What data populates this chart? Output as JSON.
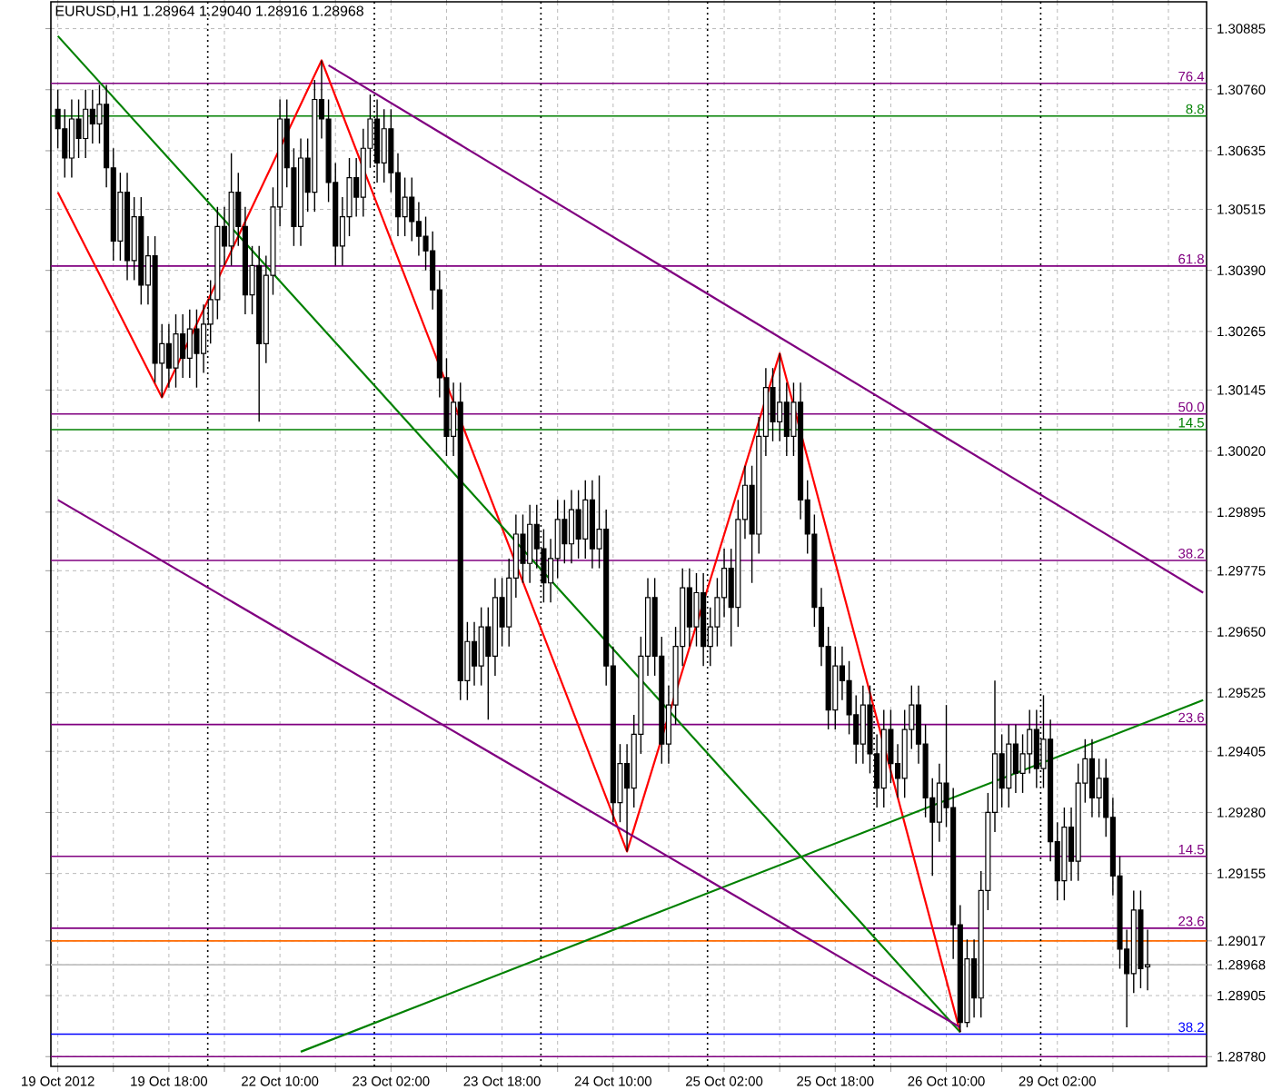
{
  "chart_data": {
    "type": "candlestick",
    "title": "EURUSD,H1  1.28964 1.29040 1.28916 1.28968",
    "color": "#000000",
    "grid": true,
    "categories": [
      "19 Oct 2012",
      null,
      null,
      null,
      null,
      null,
      null,
      null,
      null,
      null,
      null,
      null,
      null,
      null,
      null,
      null,
      "19 Oct 18:00",
      null,
      null,
      null,
      null,
      null,
      null,
      null,
      null,
      null,
      null,
      null,
      null,
      null,
      null,
      null,
      "22 Oct 10:00",
      null,
      null,
      null,
      null,
      null,
      null,
      null,
      null,
      null,
      null,
      null,
      null,
      null,
      null,
      null,
      "23 Oct 02:00",
      null,
      null,
      null,
      null,
      null,
      null,
      null,
      null,
      null,
      null,
      null,
      null,
      null,
      null,
      null,
      "23 Oct 18:00",
      null,
      null,
      null,
      null,
      null,
      null,
      null,
      null,
      null,
      null,
      null,
      null,
      null,
      null,
      null,
      "24 Oct 10:00",
      null,
      null,
      null,
      null,
      null,
      null,
      null,
      null,
      null,
      null,
      null,
      null,
      null,
      null,
      null,
      "25 Oct 02:00",
      null,
      null,
      null,
      null,
      null,
      null,
      null,
      null,
      null,
      null,
      null,
      null,
      null,
      null,
      null,
      "25 Oct 18:00",
      null,
      null,
      null,
      null,
      null,
      null,
      null,
      null,
      null,
      null,
      null,
      null,
      null,
      null,
      null,
      "26 Oct 10:00",
      null,
      null,
      null,
      null,
      null,
      null,
      null,
      null,
      null,
      null,
      null,
      null,
      null,
      null,
      null,
      "29 Oct 02:00",
      null,
      null,
      null,
      null,
      null,
      null,
      null,
      null,
      null,
      null,
      null,
      null,
      null,
      null,
      null,
      null,
      null,
      null,
      null,
      null,
      null
    ],
    "ohlc": [
      [
        1.3072,
        1.3076,
        1.3064,
        1.3068
      ],
      [
        1.3068,
        1.3072,
        1.3058,
        1.3062
      ],
      [
        1.3062,
        1.3074,
        1.3058,
        1.307
      ],
      [
        1.307,
        1.3074,
        1.3062,
        1.3066
      ],
      [
        1.3066,
        1.3076,
        1.3062,
        1.3072
      ],
      [
        1.3072,
        1.3076,
        1.3065,
        1.3069
      ],
      [
        1.3069,
        1.3077,
        1.3065,
        1.3073
      ],
      [
        1.3073,
        1.3077,
        1.3056,
        1.306
      ],
      [
        1.306,
        1.3064,
        1.3041,
        1.3045
      ],
      [
        1.3045,
        1.3059,
        1.3041,
        1.3055
      ],
      [
        1.3055,
        1.3059,
        1.3037,
        1.3041
      ],
      [
        1.3041,
        1.3054,
        1.3037,
        1.305
      ],
      [
        1.305,
        1.3054,
        1.3032,
        1.3036
      ],
      [
        1.3036,
        1.3046,
        1.3032,
        1.3042
      ],
      [
        1.3042,
        1.3046,
        1.3016,
        1.302
      ],
      [
        1.302,
        1.3028,
        1.3013,
        1.3024
      ],
      [
        1.3024,
        1.3028,
        1.3015,
        1.3019
      ],
      [
        1.3019,
        1.303,
        1.3015,
        1.3026
      ],
      [
        1.3026,
        1.303,
        1.3017,
        1.3021
      ],
      [
        1.3021,
        1.3031,
        1.3017,
        1.3027
      ],
      [
        1.3027,
        1.3031,
        1.3015,
        1.3022
      ],
      [
        1.3022,
        1.3032,
        1.3018,
        1.3028
      ],
      [
        1.3028,
        1.3037,
        1.3024,
        1.3033
      ],
      [
        1.3033,
        1.3052,
        1.3029,
        1.3048
      ],
      [
        1.3048,
        1.3052,
        1.304,
        1.3044
      ],
      [
        1.3044,
        1.3063,
        1.304,
        1.3055
      ],
      [
        1.3055,
        1.3059,
        1.3044,
        1.3048
      ],
      [
        1.3048,
        1.3052,
        1.303,
        1.3034
      ],
      [
        1.3034,
        1.3044,
        1.303,
        1.304
      ],
      [
        1.304,
        1.3044,
        1.3008,
        1.3024
      ],
      [
        1.3024,
        1.3042,
        1.302,
        1.3038
      ],
      [
        1.3038,
        1.3056,
        1.3034,
        1.3052
      ],
      [
        1.3052,
        1.3074,
        1.3048,
        1.307
      ],
      [
        1.307,
        1.3074,
        1.3056,
        1.306
      ],
      [
        1.306,
        1.3064,
        1.3044,
        1.3048
      ],
      [
        1.3048,
        1.3066,
        1.3044,
        1.3062
      ],
      [
        1.3062,
        1.3066,
        1.3051,
        1.3055
      ],
      [
        1.3055,
        1.3078,
        1.3051,
        1.3074
      ],
      [
        1.3074,
        1.3082,
        1.3066,
        1.307
      ],
      [
        1.307,
        1.3074,
        1.3053,
        1.3057
      ],
      [
        1.3057,
        1.3061,
        1.304,
        1.3044
      ],
      [
        1.3044,
        1.3054,
        1.304,
        1.305
      ],
      [
        1.305,
        1.3062,
        1.3046,
        1.3058
      ],
      [
        1.3058,
        1.3062,
        1.305,
        1.3054
      ],
      [
        1.3054,
        1.3068,
        1.305,
        1.3064
      ],
      [
        1.3064,
        1.3075,
        1.306,
        1.307
      ],
      [
        1.307,
        1.3074,
        1.3057,
        1.3061
      ],
      [
        1.3061,
        1.3072,
        1.3057,
        1.3068
      ],
      [
        1.3068,
        1.3072,
        1.3055,
        1.3059
      ],
      [
        1.3059,
        1.3063,
        1.3046,
        1.305
      ],
      [
        1.305,
        1.3058,
        1.3046,
        1.3054
      ],
      [
        1.3054,
        1.3058,
        1.3045,
        1.3049
      ],
      [
        1.3049,
        1.3053,
        1.3042,
        1.3046
      ],
      [
        1.3046,
        1.305,
        1.3039,
        1.3043
      ],
      [
        1.3043,
        1.3047,
        1.3031,
        1.3035
      ],
      [
        1.3035,
        1.3039,
        1.3013,
        1.3017
      ],
      [
        1.3017,
        1.3021,
        1.3001,
        1.3005
      ],
      [
        1.3005,
        1.3016,
        1.3001,
        1.3012
      ],
      [
        1.3012,
        1.3016,
        1.2951,
        1.2955
      ],
      [
        1.2955,
        1.2967,
        1.2951,
        1.2963
      ],
      [
        1.2963,
        1.2967,
        1.2954,
        1.2958
      ],
      [
        1.2958,
        1.297,
        1.2954,
        1.2966
      ],
      [
        1.2966,
        1.297,
        1.2947,
        1.296
      ],
      [
        1.296,
        1.2976,
        1.2956,
        1.2972
      ],
      [
        1.2972,
        1.2976,
        1.2962,
        1.2966
      ],
      [
        1.2966,
        1.298,
        1.2962,
        1.2976
      ],
      [
        1.2976,
        1.2989,
        1.2972,
        1.2985
      ],
      [
        1.2985,
        1.2989,
        1.2975,
        1.2979
      ],
      [
        1.2979,
        1.2991,
        1.2975,
        1.2987
      ],
      [
        1.2987,
        1.2991,
        1.2978,
        1.2982
      ],
      [
        1.2982,
        1.2986,
        1.2971,
        1.2975
      ],
      [
        1.2975,
        1.2984,
        1.2971,
        1.298
      ],
      [
        1.298,
        1.2992,
        1.2976,
        1.2988
      ],
      [
        1.2988,
        1.2992,
        1.2979,
        1.2983
      ],
      [
        1.2983,
        1.2994,
        1.2979,
        1.299
      ],
      [
        1.299,
        1.2994,
        1.298,
        1.2984
      ],
      [
        1.2984,
        1.2996,
        1.298,
        1.2992
      ],
      [
        1.2992,
        1.2996,
        1.2978,
        1.2982
      ],
      [
        1.2982,
        1.2997,
        1.2978,
        1.2986
      ],
      [
        1.2986,
        1.299,
        1.2954,
        1.2958
      ],
      [
        1.2958,
        1.2962,
        1.2926,
        1.293
      ],
      [
        1.293,
        1.2942,
        1.2926,
        1.2938
      ],
      [
        1.2938,
        1.2942,
        1.292,
        1.2933
      ],
      [
        1.2933,
        1.2948,
        1.2929,
        1.2944
      ],
      [
        1.2944,
        1.2964,
        1.294,
        1.296
      ],
      [
        1.296,
        1.2976,
        1.2956,
        1.2972
      ],
      [
        1.2972,
        1.2976,
        1.2956,
        1.296
      ],
      [
        1.296,
        1.2964,
        1.2938,
        1.2942
      ],
      [
        1.2942,
        1.2954,
        1.2938,
        1.295
      ],
      [
        1.295,
        1.2966,
        1.2946,
        1.2962
      ],
      [
        1.2962,
        1.2978,
        1.2958,
        1.2974
      ],
      [
        1.2974,
        1.2978,
        1.2962,
        1.2966
      ],
      [
        1.2966,
        1.2977,
        1.2962,
        1.2973
      ],
      [
        1.2973,
        1.2977,
        1.2958,
        1.2962
      ],
      [
        1.2962,
        1.297,
        1.2958,
        1.2966
      ],
      [
        1.2966,
        1.2976,
        1.2962,
        1.2972
      ],
      [
        1.2972,
        1.2982,
        1.2968,
        1.2978
      ],
      [
        1.2978,
        1.2982,
        1.2962,
        1.297
      ],
      [
        1.297,
        1.2992,
        1.2966,
        1.2988
      ],
      [
        1.2988,
        1.2999,
        1.2984,
        1.2995
      ],
      [
        1.2995,
        1.2999,
        1.2975,
        1.2985
      ],
      [
        1.2985,
        1.3009,
        1.2981,
        1.3005
      ],
      [
        1.3005,
        1.3019,
        1.3001,
        1.3015
      ],
      [
        1.3015,
        1.3019,
        1.3004,
        1.3008
      ],
      [
        1.3008,
        1.3022,
        1.3004,
        1.3012
      ],
      [
        1.3012,
        1.3016,
        1.3001,
        1.3005
      ],
      [
        1.3005,
        1.3016,
        1.3001,
        1.3012
      ],
      [
        1.3012,
        1.3016,
        1.2988,
        1.2992
      ],
      [
        1.2992,
        1.2996,
        1.2981,
        1.2985
      ],
      [
        1.2985,
        1.2989,
        1.2966,
        1.297
      ],
      [
        1.297,
        1.2974,
        1.2958,
        1.2962
      ],
      [
        1.2962,
        1.2966,
        1.2945,
        1.2949
      ],
      [
        1.2949,
        1.2962,
        1.2945,
        1.2958
      ],
      [
        1.2958,
        1.2962,
        1.2951,
        1.2955
      ],
      [
        1.2955,
        1.2959,
        1.2944,
        1.2948
      ],
      [
        1.2948,
        1.2952,
        1.2938,
        1.2942
      ],
      [
        1.2942,
        1.2954,
        1.2938,
        1.295
      ],
      [
        1.295,
        1.2954,
        1.2936,
        1.294
      ],
      [
        1.294,
        1.2944,
        1.2929,
        1.2933
      ],
      [
        1.2933,
        1.2949,
        1.2929,
        1.2945
      ],
      [
        1.2945,
        1.2949,
        1.2934,
        1.2938
      ],
      [
        1.2938,
        1.2942,
        1.2931,
        1.2935
      ],
      [
        1.2935,
        1.2949,
        1.2931,
        1.2945
      ],
      [
        1.2945,
        1.2954,
        1.2941,
        1.295
      ],
      [
        1.295,
        1.2954,
        1.2938,
        1.2942
      ],
      [
        1.2942,
        1.2946,
        1.2927,
        1.2931
      ],
      [
        1.2931,
        1.2935,
        1.2915,
        1.2926
      ],
      [
        1.2926,
        1.2938,
        1.2922,
        1.2934
      ],
      [
        1.2934,
        1.295,
        1.2925,
        1.2929
      ],
      [
        1.2929,
        1.2933,
        1.2898,
        1.2905
      ],
      [
        1.2905,
        1.2909,
        1.2883,
        1.2885
      ],
      [
        1.2885,
        1.2902,
        1.2884,
        1.2898
      ],
      [
        1.2898,
        1.2902,
        1.2886,
        1.289
      ],
      [
        1.289,
        1.2916,
        1.2886,
        1.2912
      ],
      [
        1.2912,
        1.2932,
        1.2908,
        1.2928
      ],
      [
        1.2928,
        1.2955,
        1.2924,
        1.294
      ],
      [
        1.294,
        1.2944,
        1.2929,
        1.2933
      ],
      [
        1.2933,
        1.2946,
        1.2929,
        1.2942
      ],
      [
        1.2942,
        1.2946,
        1.2932,
        1.2936
      ],
      [
        1.2936,
        1.2944,
        1.2932,
        1.294
      ],
      [
        1.294,
        1.2949,
        1.2936,
        1.2945
      ],
      [
        1.2945,
        1.2949,
        1.2933,
        1.2937
      ],
      [
        1.2937,
        1.2952,
        1.2933,
        1.2943
      ],
      [
        1.2943,
        1.2947,
        1.2918,
        1.2922
      ],
      [
        1.2922,
        1.2926,
        1.291,
        1.2914
      ],
      [
        1.2914,
        1.2929,
        1.291,
        1.2925
      ],
      [
        1.2925,
        1.2929,
        1.2914,
        1.2918
      ],
      [
        1.2918,
        1.2938,
        1.2914,
        1.2934
      ],
      [
        1.2934,
        1.2943,
        1.293,
        1.2939
      ],
      [
        1.2939,
        1.2943,
        1.2927,
        1.2931
      ],
      [
        1.2931,
        1.2939,
        1.2927,
        1.2935
      ],
      [
        1.2935,
        1.2939,
        1.2923,
        1.2927
      ],
      [
        1.2927,
        1.2931,
        1.2911,
        1.2915
      ],
      [
        1.2915,
        1.2919,
        1.2896,
        1.29
      ],
      [
        1.29,
        1.2904,
        1.2884,
        1.2895
      ],
      [
        1.2895,
        1.2912,
        1.2891,
        1.2908
      ],
      [
        1.2908,
        1.2912,
        1.2892,
        1.2896
      ],
      [
        1.28964,
        1.2904,
        1.28916,
        1.28968
      ],
      null,
      null,
      null,
      null,
      null,
      null,
      null,
      null
    ],
    "series": [
      {
        "type": "line",
        "color": "#ff0000",
        "values": [
          1.3055,
          null,
          null,
          null,
          null,
          null,
          null,
          null,
          null,
          null,
          null,
          null,
          null,
          null,
          null,
          1.3013,
          null,
          null,
          null,
          null,
          null,
          null,
          null,
          null,
          null,
          null,
          null,
          null,
          null,
          null,
          null,
          null,
          null,
          null,
          null,
          null,
          null,
          null,
          1.3082,
          null,
          null,
          null,
          null,
          null,
          null,
          null,
          null,
          null,
          null,
          null,
          null,
          null,
          null,
          null,
          null,
          null,
          null,
          null,
          null,
          null,
          null,
          null,
          null,
          null,
          null,
          null,
          null,
          null,
          null,
          null,
          null,
          null,
          null,
          null,
          null,
          null,
          null,
          null,
          null,
          null,
          null,
          null,
          1.292,
          null,
          null,
          null,
          null,
          null,
          null,
          null,
          null,
          null,
          null,
          null,
          null,
          null,
          null,
          null,
          null,
          null,
          null,
          null,
          null,
          null,
          1.3022,
          null,
          null,
          null,
          null,
          null,
          null,
          null,
          null,
          null,
          null,
          null,
          null,
          null,
          null,
          null,
          null,
          null,
          null,
          null,
          null,
          null,
          null,
          null,
          null,
          null,
          1.2883,
          null,
          null,
          null,
          null,
          null,
          null,
          null,
          null,
          null,
          null,
          null,
          null,
          null,
          null,
          null,
          null,
          null,
          null,
          null,
          null,
          null,
          null,
          null,
          null,
          null,
          null,
          null,
          null,
          null,
          null,
          null,
          null,
          null,
          null,
          null
        ]
      },
      {
        "type": "line",
        "color": "#008000",
        "values": [
          1.3087,
          null,
          null,
          null,
          null,
          null,
          null,
          null,
          null,
          null,
          null,
          null,
          null,
          null,
          null,
          null,
          null,
          null,
          null,
          null,
          null,
          null,
          null,
          null,
          null,
          null,
          null,
          null,
          null,
          null,
          null,
          null,
          null,
          null,
          null,
          null,
          null,
          null,
          null,
          null,
          null,
          null,
          null,
          null,
          null,
          null,
          null,
          null,
          null,
          null,
          null,
          null,
          null,
          null,
          null,
          null,
          null,
          null,
          null,
          null,
          null,
          null,
          null,
          null,
          null,
          null,
          null,
          null,
          null,
          null,
          null,
          null,
          null,
          null,
          null,
          null,
          null,
          null,
          null,
          null,
          null,
          null,
          null,
          null,
          null,
          null,
          null,
          null,
          null,
          null,
          null,
          null,
          null,
          null,
          null,
          null,
          null,
          null,
          null,
          null,
          null,
          null,
          null,
          null,
          null,
          null,
          null,
          null,
          null,
          null,
          null,
          null,
          null,
          null,
          null,
          null,
          null,
          null,
          null,
          null,
          null,
          null,
          null,
          null,
          null,
          null,
          null,
          null,
          null,
          null,
          1.2883,
          null,
          null,
          null,
          null,
          null,
          null,
          null,
          null,
          null,
          null,
          null,
          null,
          null,
          null,
          null,
          null,
          null,
          null,
          null,
          null,
          null,
          null,
          null,
          null,
          null,
          null,
          null,
          null,
          null,
          null,
          null,
          null,
          null,
          null,
          null
        ]
      },
      {
        "type": "line",
        "color": "#008000",
        "values": [
          null,
          null,
          null,
          null,
          null,
          null,
          null,
          null,
          null,
          null,
          null,
          null,
          null,
          null,
          null,
          null,
          null,
          null,
          null,
          null,
          null,
          null,
          null,
          null,
          null,
          null,
          null,
          null,
          null,
          null,
          null,
          null,
          null,
          null,
          null,
          1.2879,
          null,
          null,
          null,
          null,
          null,
          null,
          null,
          null,
          null,
          null,
          null,
          null,
          null,
          null,
          null,
          null,
          null,
          null,
          null,
          null,
          null,
          null,
          null,
          null,
          null,
          null,
          null,
          null,
          null,
          null,
          null,
          null,
          null,
          null,
          null,
          null,
          null,
          null,
          null,
          null,
          null,
          null,
          null,
          null,
          null,
          null,
          null,
          null,
          null,
          null,
          null,
          null,
          null,
          null,
          null,
          null,
          null,
          null,
          null,
          null,
          null,
          null,
          null,
          null,
          null,
          null,
          null,
          null,
          null,
          null,
          null,
          null,
          null,
          null,
          null,
          null,
          null,
          null,
          null,
          null,
          null,
          null,
          null,
          null,
          null,
          null,
          null,
          null,
          null,
          null,
          null,
          null,
          null,
          null,
          null,
          null,
          null,
          null,
          null,
          null,
          null,
          null,
          null,
          null,
          null,
          null,
          null,
          null,
          null,
          null,
          null,
          null,
          null,
          null,
          null,
          null,
          null,
          null,
          null,
          null,
          null,
          null,
          null,
          null,
          null,
          null,
          null,
          null,
          null,
          1.2951
        ]
      },
      {
        "type": "line",
        "color": "#800080",
        "values": [
          null,
          null,
          null,
          null,
          null,
          null,
          null,
          null,
          null,
          null,
          null,
          null,
          null,
          null,
          null,
          null,
          null,
          null,
          null,
          null,
          null,
          null,
          null,
          null,
          null,
          null,
          null,
          null,
          null,
          null,
          null,
          null,
          null,
          null,
          null,
          null,
          null,
          null,
          null,
          1.3081,
          null,
          null,
          null,
          null,
          null,
          null,
          null,
          null,
          null,
          null,
          null,
          null,
          null,
          null,
          null,
          null,
          null,
          null,
          null,
          null,
          null,
          null,
          null,
          null,
          null,
          null,
          null,
          null,
          null,
          null,
          null,
          null,
          null,
          null,
          null,
          null,
          null,
          null,
          null,
          null,
          null,
          null,
          null,
          null,
          null,
          null,
          null,
          null,
          null,
          null,
          null,
          null,
          null,
          null,
          null,
          null,
          null,
          null,
          null,
          null,
          null,
          null,
          null,
          null,
          null,
          null,
          null,
          null,
          null,
          null,
          null,
          null,
          null,
          null,
          null,
          null,
          null,
          null,
          null,
          null,
          null,
          null,
          null,
          null,
          null,
          null,
          null,
          null,
          null,
          null,
          null,
          null,
          null,
          null,
          null,
          null,
          null,
          null,
          null,
          null,
          null,
          null,
          null,
          null,
          null,
          null,
          null,
          null,
          null,
          null,
          null,
          null,
          null,
          null,
          null,
          null,
          null,
          null,
          null,
          null,
          null,
          null,
          null,
          null,
          null,
          1.2973
        ]
      },
      {
        "type": "line",
        "color": "#800080",
        "values": [
          1.2992,
          null,
          null,
          null,
          null,
          null,
          null,
          null,
          null,
          null,
          null,
          null,
          null,
          null,
          null,
          null,
          null,
          null,
          null,
          null,
          null,
          null,
          null,
          null,
          null,
          null,
          null,
          null,
          null,
          null,
          null,
          null,
          null,
          null,
          null,
          null,
          null,
          null,
          null,
          null,
          null,
          null,
          null,
          null,
          null,
          null,
          null,
          null,
          null,
          null,
          null,
          null,
          null,
          null,
          null,
          null,
          null,
          null,
          null,
          null,
          null,
          null,
          null,
          null,
          null,
          null,
          null,
          null,
          null,
          null,
          null,
          null,
          null,
          null,
          null,
          null,
          null,
          null,
          null,
          null,
          null,
          null,
          null,
          null,
          null,
          null,
          null,
          null,
          null,
          null,
          null,
          null,
          null,
          null,
          null,
          null,
          null,
          null,
          null,
          null,
          null,
          null,
          null,
          null,
          null,
          null,
          null,
          null,
          null,
          null,
          null,
          null,
          null,
          null,
          null,
          null,
          null,
          null,
          null,
          null,
          null,
          null,
          null,
          null,
          null,
          null,
          null,
          null,
          null,
          null,
          1.2884,
          null,
          null,
          null,
          null,
          null,
          null,
          null,
          null,
          null,
          null,
          null,
          null,
          null,
          null,
          null,
          null,
          null,
          null,
          null,
          null,
          null,
          null,
          null,
          null,
          null,
          null,
          null,
          null,
          null,
          null,
          null,
          null,
          null,
          null,
          null
        ]
      }
    ],
    "ylim": [
      1.2876,
      1.3094
    ],
    "annotations": [
      {
        "text": "76.4",
        "y": 1.30773
      },
      {
        "text": "8.8",
        "y": 1.30706
      },
      {
        "text": "61.8",
        "y": 1.30399
      },
      {
        "text": "50.0",
        "y": 1.30096
      },
      {
        "text": "14.5",
        "y": 1.30064
      },
      {
        "text": "38.2",
        "y": 1.29796
      },
      {
        "text": "23.6",
        "y": 1.2946
      },
      {
        "text": "14.5",
        "y": 1.2919
      },
      {
        "text": "23.6",
        "y": 1.29043
      },
      {
        "text": "38.2",
        "y": 1.28826
      }
    ],
    "yticks": [
      {
        "value": 1.30885,
        "label": "1.30885"
      },
      {
        "value": 1.3076,
        "label": "1.30760"
      },
      {
        "value": 1.30635,
        "label": "1.30635"
      },
      {
        "value": 1.30515,
        "label": "1.30515"
      },
      {
        "value": 1.3039,
        "label": "1.30390"
      },
      {
        "value": 1.30265,
        "label": "1.30265"
      },
      {
        "value": 1.30145,
        "label": "1.30145"
      },
      {
        "value": 1.3002,
        "label": "1.30020"
      },
      {
        "value": 1.29895,
        "label": "1.29895"
      },
      {
        "value": 1.29775,
        "label": "1.29775"
      },
      {
        "value": 1.2965,
        "label": "1.29650"
      },
      {
        "value": 1.29525,
        "label": "1.29525"
      },
      {
        "value": 1.29405,
        "label": "1.29405"
      },
      {
        "value": 1.2928,
        "label": "1.29280"
      },
      {
        "value": 1.29155,
        "label": "1.29155"
      },
      {
        "value": 1.29017,
        "label": "1.29017"
      },
      {
        "value": 1.28968,
        "label": "1.28968"
      },
      {
        "value": 1.28905,
        "label": "1.28905"
      },
      {
        "value": 1.2878,
        "label": "1.28780"
      }
    ],
    "ref_lines": [
      {
        "axis": "y",
        "value": 1.30773,
        "color": "#800080"
      },
      {
        "axis": "y",
        "value": 1.30706,
        "color": "#008000"
      },
      {
        "axis": "y",
        "value": 1.30399,
        "color": "#800080"
      },
      {
        "axis": "y",
        "value": 1.30096,
        "color": "#800080"
      },
      {
        "axis": "y",
        "value": 1.30064,
        "color": "#008000"
      },
      {
        "axis": "y",
        "value": 1.29796,
        "color": "#800080"
      },
      {
        "axis": "y",
        "value": 1.2946,
        "color": "#800080"
      },
      {
        "axis": "y",
        "value": 1.2919,
        "color": "#800080"
      },
      {
        "axis": "y",
        "value": 1.29043,
        "color": "#800080"
      },
      {
        "axis": "y",
        "value": 1.28826,
        "color": "#0000ff"
      },
      {
        "axis": "y",
        "value": 1.2878,
        "color": "#800080"
      },
      {
        "axis": "y",
        "value": 1.29017,
        "color": "#ff6a00"
      },
      {
        "axis": "y",
        "value": 1.28968,
        "color": "#c0c0c0"
      }
    ]
  }
}
